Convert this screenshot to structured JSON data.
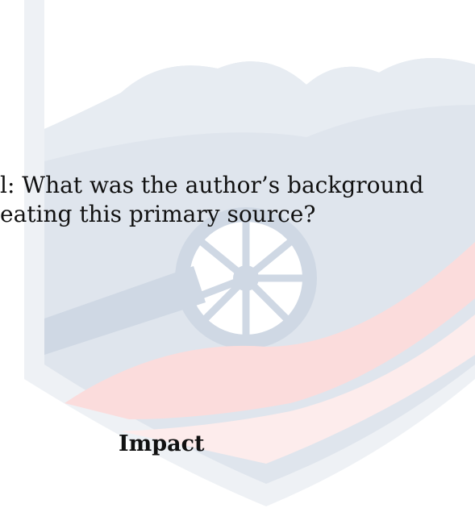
{
  "lines": [
    "l: What was the author’s background",
    "eating this primary source?"
  ],
  "heading": "Impact"
}
